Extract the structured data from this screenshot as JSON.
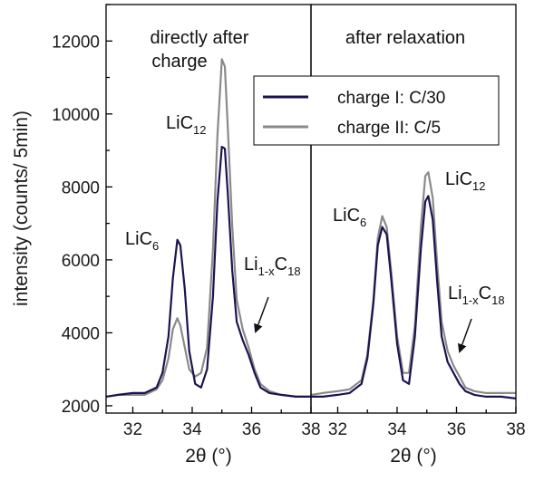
{
  "chart_data": {
    "type": "line",
    "ylabel": "intensity (counts/ 5min)",
    "ylim": [
      1800,
      13000
    ],
    "yticks": [
      2000,
      4000,
      6000,
      8000,
      10000,
      12000
    ],
    "legend": {
      "placement": "top-center"
    },
    "series_styles": [
      {
        "name": "charge I: C/30",
        "color": "#1b1450"
      },
      {
        "name": "charge II: C/5",
        "color": "#8a8a8a"
      }
    ],
    "panels": [
      {
        "title": "directly after charge",
        "xlabel": "2θ (°)",
        "xlim": [
          31.1,
          38
        ],
        "xticks": [
          32,
          34,
          36,
          38
        ],
        "series": [
          {
            "name": "charge I: C/30",
            "x": [
              31.1,
              31.5,
              32.0,
              32.4,
              32.8,
              33.0,
              33.2,
              33.35,
              33.5,
              33.6,
              33.75,
              33.9,
              34.1,
              34.3,
              34.5,
              34.7,
              34.85,
              35.0,
              35.1,
              35.2,
              35.35,
              35.5,
              35.7,
              35.9,
              36.1,
              36.3,
              36.6,
              37.0,
              37.5,
              38.0
            ],
            "y": [
              2250,
              2300,
              2350,
              2350,
              2500,
              2900,
              3900,
              5500,
              6550,
              6400,
              5200,
              3500,
              2600,
              2500,
              3000,
              5000,
              7600,
              9100,
              9050,
              7800,
              5700,
              4300,
              3800,
              3400,
              2900,
              2500,
              2350,
              2300,
              2250,
              2250
            ]
          },
          {
            "name": "charge II: C/5",
            "x": [
              31.1,
              31.5,
              32.0,
              32.4,
              32.8,
              33.0,
              33.2,
              33.35,
              33.5,
              33.6,
              33.75,
              33.9,
              34.1,
              34.3,
              34.5,
              34.7,
              34.85,
              35.0,
              35.1,
              35.2,
              35.35,
              35.5,
              35.7,
              35.9,
              36.1,
              36.3,
              36.6,
              37.0,
              37.5,
              38.0
            ],
            "y": [
              2250,
              2300,
              2300,
              2300,
              2450,
              2700,
              3300,
              4100,
              4400,
              4200,
              3600,
              3000,
              2800,
              2900,
              3600,
              6300,
              9400,
              11500,
              11300,
              9600,
              6900,
              4900,
              4100,
              3600,
              3000,
              2600,
              2400,
              2300,
              2250,
              2250
            ]
          }
        ],
        "annotations": [
          {
            "label": "LiC",
            "sub": "6"
          },
          {
            "label": "LiC",
            "sub": "12"
          },
          {
            "label": "Li",
            "sub": "1-x",
            "label2": "C",
            "sub2": "18"
          }
        ]
      },
      {
        "title": "after relaxation",
        "xlabel": "2θ (°)",
        "xlim": [
          31.1,
          38
        ],
        "xticks": [
          32,
          34,
          36,
          38
        ],
        "series": [
          {
            "name": "charge I: C/30",
            "x": [
              31.1,
              31.5,
              32.0,
              32.4,
              32.8,
              33.0,
              33.2,
              33.35,
              33.5,
              33.65,
              33.8,
              34.0,
              34.2,
              34.4,
              34.6,
              34.8,
              34.95,
              35.05,
              35.2,
              35.35,
              35.5,
              35.7,
              35.9,
              36.1,
              36.3,
              36.6,
              37.0,
              37.5,
              38.0
            ],
            "y": [
              2250,
              2250,
              2300,
              2350,
              2600,
              3300,
              4800,
              6400,
              6900,
              6700,
              5500,
              3700,
              2700,
              2600,
              3900,
              6300,
              7600,
              7750,
              7100,
              5400,
              3900,
              3200,
              2900,
              2600,
              2400,
              2300,
              2250,
              2250,
              2200
            ]
          },
          {
            "name": "charge II: C/5",
            "x": [
              31.1,
              31.5,
              32.0,
              32.4,
              32.8,
              33.0,
              33.2,
              33.35,
              33.5,
              33.65,
              33.8,
              34.0,
              34.2,
              34.4,
              34.6,
              34.8,
              34.95,
              35.05,
              35.2,
              35.35,
              35.5,
              35.7,
              35.9,
              36.1,
              36.3,
              36.6,
              37.0,
              37.5,
              38.0
            ],
            "y": [
              2300,
              2350,
              2400,
              2450,
              2700,
              3400,
              4900,
              6600,
              7200,
              6900,
              5700,
              3900,
              2900,
              2900,
              4200,
              6900,
              8300,
              8400,
              7700,
              5900,
              4300,
              3500,
              3100,
              2800,
              2500,
              2400,
              2350,
              2350,
              2350
            ]
          }
        ],
        "annotations": [
          {
            "label": "LiC",
            "sub": "6"
          },
          {
            "label": "LiC",
            "sub": "12"
          },
          {
            "label": "Li",
            "sub": "1-x",
            "label2": "C",
            "sub2": "18"
          }
        ]
      }
    ]
  }
}
